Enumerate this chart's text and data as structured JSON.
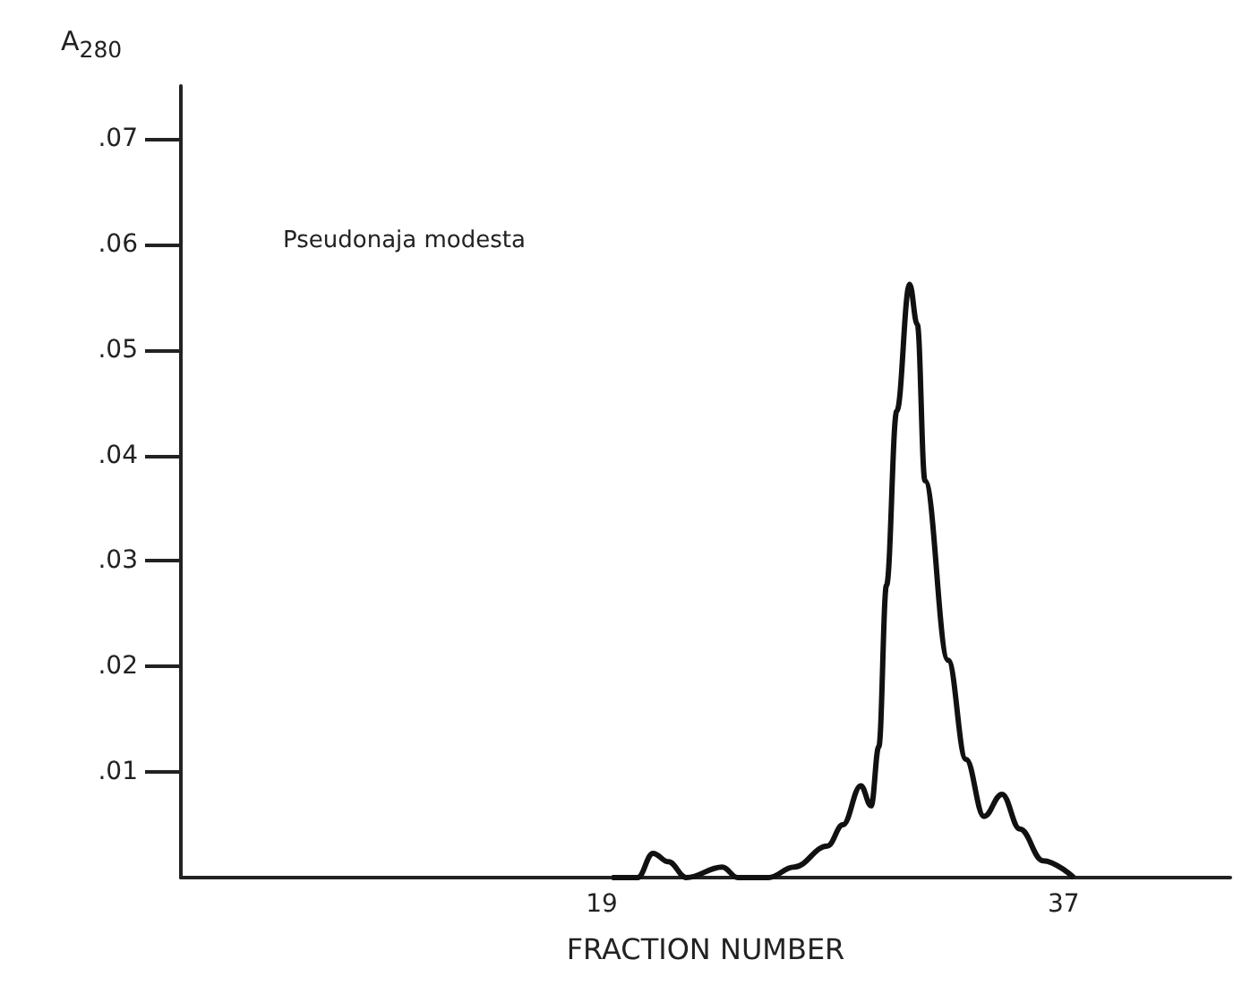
{
  "chart_data": {
    "type": "line",
    "ylabel": "A$_{280}$",
    "xlabel": "FRACTION NUMBER",
    "annotations": [
      "Pseudonaja modesta"
    ],
    "xlim": [
      2.6,
      43.5
    ],
    "xticks": [
      19,
      37
    ],
    "ylim": [
      0,
      0.075
    ],
    "yticks": [
      {
        "value": 0.01,
        "label": ".01"
      },
      {
        "value": 0.02,
        "label": ".02"
      },
      {
        "value": 0.03,
        "label": ".03"
      },
      {
        "value": 0.04,
        "label": ".04"
      },
      {
        "value": 0.05,
        "label": ".05"
      },
      {
        "value": 0.06,
        "label": ".06"
      },
      {
        "value": 0.07,
        "label": ".07"
      }
    ],
    "grid": false,
    "marker": "none",
    "series": [
      {
        "color": "#111111",
        "x": [
          19.4,
          20.4,
          21.0,
          21.6,
          22.3,
          23.7,
          24.3,
          25.5,
          26.5,
          27.8,
          28.4,
          29.1,
          29.5,
          29.8,
          30.1,
          30.5,
          31.0,
          31.3,
          31.6,
          32.5,
          33.2,
          33.9,
          34.6,
          35.3,
          36.2,
          37.4
        ],
        "values": [
          0,
          0,
          0.0023,
          0.0015,
          0,
          0.001,
          0,
          0,
          0.001,
          0.003,
          0.005,
          0.0087,
          0.0068,
          0.0124,
          0.0277,
          0.0442,
          0.0562,
          0.0524,
          0.0376,
          0.0206,
          0.0112,
          0.0058,
          0.0079,
          0.0046,
          0.0016,
          0
        ]
      }
    ]
  }
}
